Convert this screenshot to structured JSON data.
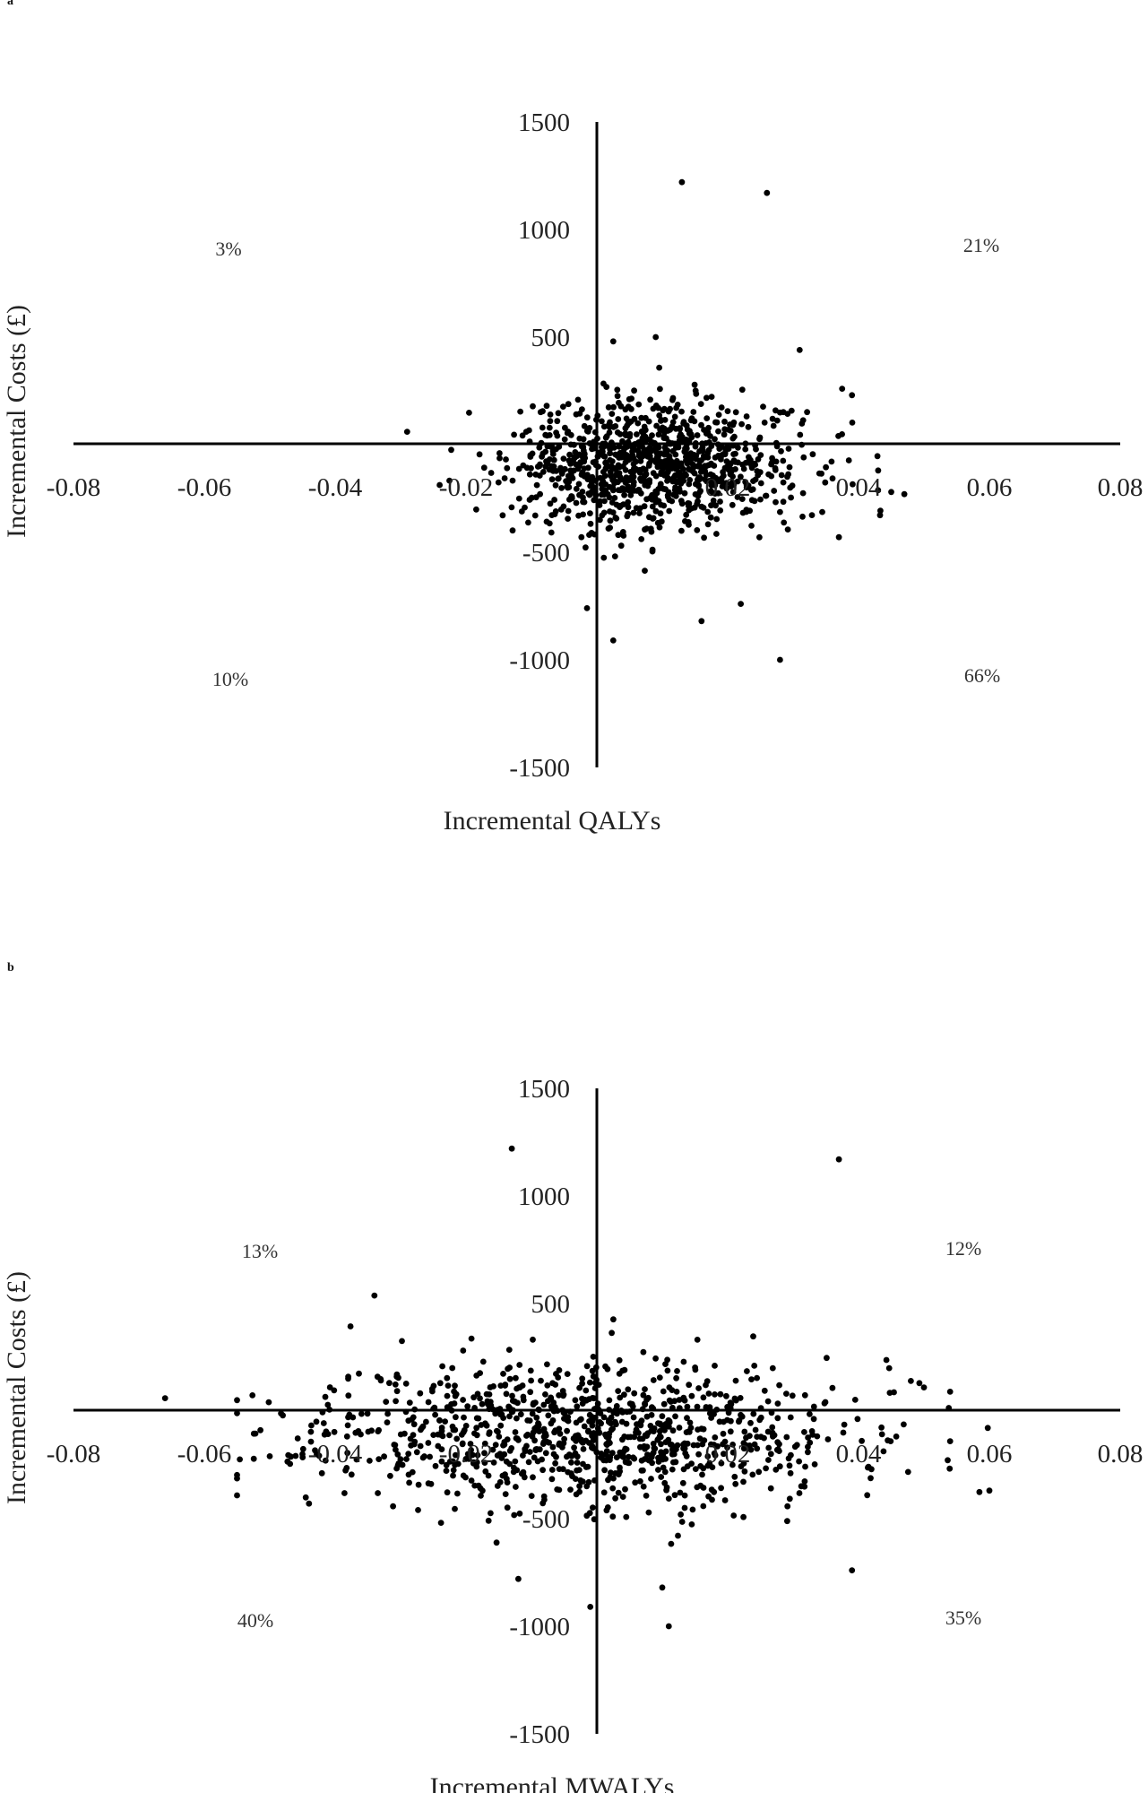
{
  "chart_data": [
    {
      "panel_label": "a",
      "type": "scatter",
      "xlabel": "Incremental QALYs",
      "ylabel": "Incremental Costs (£)",
      "xlim": [
        -0.08,
        0.08
      ],
      "ylim": [
        -1500,
        1500
      ],
      "xticks": [
        "-0.08",
        "-0.06",
        "-0.04",
        "-0.02",
        "0.02",
        "0.04",
        "0.06",
        "0.08"
      ],
      "yticks": [
        "1500",
        "1000",
        "500",
        "-500",
        "-1000",
        "-1500"
      ],
      "quadrant_labels": {
        "nw": "3%",
        "ne": "21%",
        "sw": "10%",
        "se": "66%"
      },
      "grid": false,
      "cloud": {
        "n": 1000,
        "x_mean": 0.009,
        "x_sd": 0.011,
        "y_mean": -100,
        "y_sd": 150,
        "seed": 7
      },
      "notable_points": [
        {
          "x": 0.013,
          "y": 1220
        },
        {
          "x": 0.026,
          "y": 1170
        },
        {
          "x": -0.029,
          "y": 60
        },
        {
          "x": 0.0025,
          "y": 480
        },
        {
          "x": 0.009,
          "y": 500
        },
        {
          "x": 0.031,
          "y": 440
        },
        {
          "x": 0.0375,
          "y": 260
        },
        {
          "x": 0.039,
          "y": 230
        },
        {
          "x": -0.0015,
          "y": -760
        },
        {
          "x": 0.0025,
          "y": -910
        },
        {
          "x": 0.016,
          "y": -820
        },
        {
          "x": 0.022,
          "y": -740
        },
        {
          "x": 0.028,
          "y": -1000
        },
        {
          "x": 0.037,
          "y": -430
        },
        {
          "x": 0.045,
          "y": -220
        },
        {
          "x": 0.047,
          "y": -230
        },
        {
          "x": 0.043,
          "y": -120
        }
      ]
    },
    {
      "panel_label": "b",
      "type": "scatter",
      "xlabel": "Incremental MWALYs",
      "ylabel": "Incremental Costs (£)",
      "xlim": [
        -0.08,
        0.08
      ],
      "ylim": [
        -1500,
        1500
      ],
      "xticks": [
        "-0.08",
        "-0.06",
        "-0.04",
        "-0.02",
        "0.02",
        "0.04",
        "0.06",
        "0.08"
      ],
      "yticks": [
        "1500",
        "1000",
        "500",
        "-500",
        "-1000",
        "-1500"
      ],
      "quadrant_labels": {
        "nw": "13%",
        "ne": "12%",
        "sw": "40%",
        "se": "35%"
      },
      "grid": false,
      "cloud": {
        "n": 1000,
        "x_mean": -0.002,
        "x_sd": 0.02,
        "y_mean": -100,
        "y_sd": 170,
        "seed": 11
      },
      "notable_points": [
        {
          "x": -0.013,
          "y": 1220
        },
        {
          "x": 0.037,
          "y": 1170
        },
        {
          "x": -0.066,
          "y": 60
        },
        {
          "x": -0.055,
          "y": -10
        },
        {
          "x": -0.048,
          "y": -20
        },
        {
          "x": -0.05,
          "y": -210
        },
        {
          "x": -0.045,
          "y": -200
        },
        {
          "x": -0.044,
          "y": -430
        },
        {
          "x": -0.012,
          "y": -780
        },
        {
          "x": -0.001,
          "y": -910
        },
        {
          "x": 0.01,
          "y": -820
        },
        {
          "x": 0.011,
          "y": -1000
        },
        {
          "x": 0.039,
          "y": -740
        },
        {
          "x": 0.054,
          "y": 90
        },
        {
          "x": 0.048,
          "y": 140
        },
        {
          "x": 0.05,
          "y": 110
        },
        {
          "x": 0.054,
          "y": -140
        },
        {
          "x": -0.038,
          "y": 160
        }
      ]
    }
  ]
}
